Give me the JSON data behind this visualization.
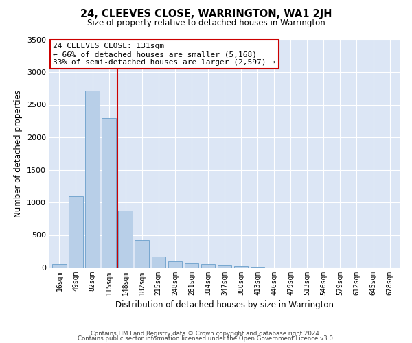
{
  "title": "24, CLEEVES CLOSE, WARRINGTON, WA1 2JH",
  "subtitle": "Size of property relative to detached houses in Warrington",
  "xlabel": "Distribution of detached houses by size in Warrington",
  "ylabel": "Number of detached properties",
  "categories": [
    "16sqm",
    "49sqm",
    "82sqm",
    "115sqm",
    "148sqm",
    "182sqm",
    "215sqm",
    "248sqm",
    "281sqm",
    "314sqm",
    "347sqm",
    "380sqm",
    "413sqm",
    "446sqm",
    "479sqm",
    "513sqm",
    "546sqm",
    "579sqm",
    "612sqm",
    "645sqm",
    "678sqm"
  ],
  "values": [
    50,
    1090,
    2720,
    2300,
    870,
    420,
    170,
    100,
    65,
    50,
    30,
    20,
    10,
    5,
    4,
    3,
    2,
    1,
    1,
    0,
    0
  ],
  "bar_color": "#b8cfe8",
  "bar_edge_color": "#6a9fcb",
  "bg_color": "#dce6f5",
  "vline_color": "#cc0000",
  "annotation_line1": "24 CLEEVES CLOSE: 131sqm",
  "annotation_line2": "← 66% of detached houses are smaller (5,168)",
  "annotation_line3": "33% of semi-detached houses are larger (2,597) →",
  "annotation_box_color": "#ffffff",
  "annotation_box_edge_color": "#cc0000",
  "ylim": [
    0,
    3500
  ],
  "yticks": [
    0,
    500,
    1000,
    1500,
    2000,
    2500,
    3000,
    3500
  ],
  "footer1": "Contains HM Land Registry data © Crown copyright and database right 2024.",
  "footer2": "Contains public sector information licensed under the Open Government Licence v3.0."
}
